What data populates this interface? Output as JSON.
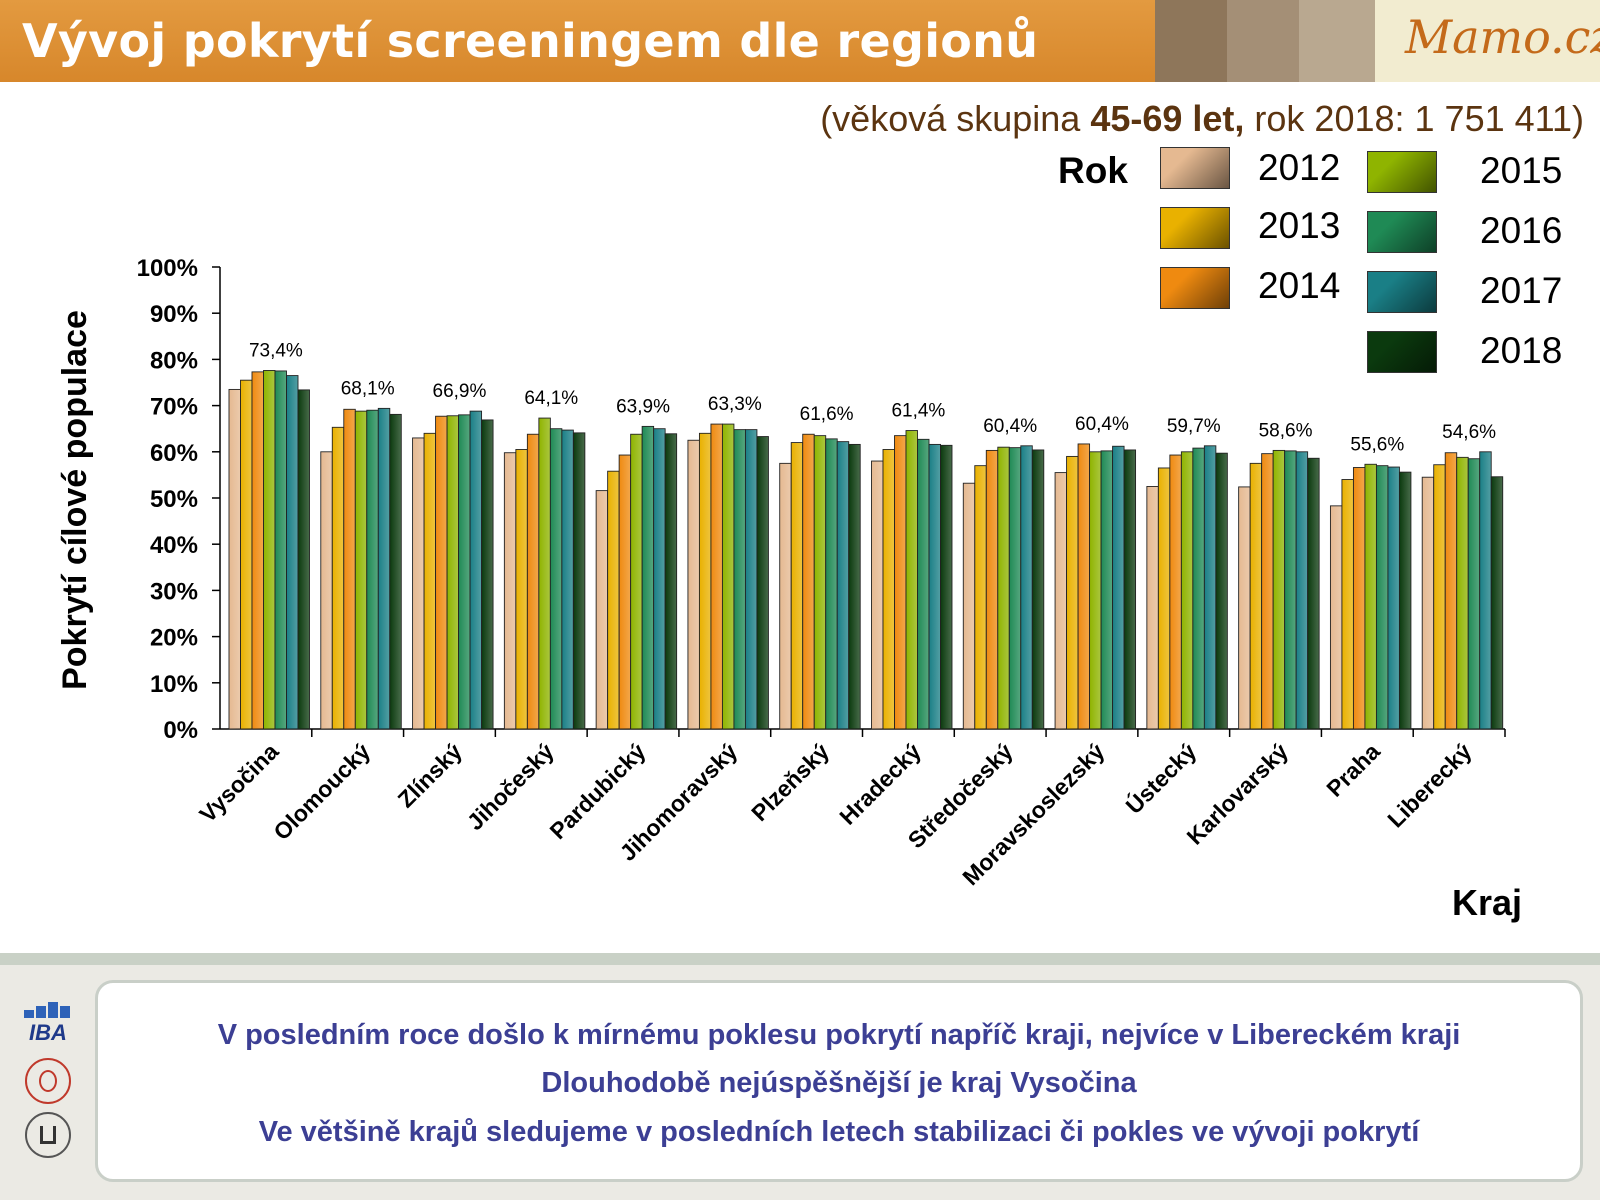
{
  "header": {
    "title": "Vývoj pokrytí screeningem dle regionů",
    "logo_text": "Mamo.cz",
    "tile_colors": [
      "#8e765a",
      "#a48f76",
      "#b9a890",
      "#cfc3ad"
    ]
  },
  "subtitle": {
    "pre": "(věková skupina ",
    "bold": "45-69 let,",
    "post": " rok 2018: 1 751 411)"
  },
  "legend": {
    "title": "Rok",
    "items": [
      {
        "label": "2012",
        "color": "#e5b991"
      },
      {
        "label": "2013",
        "color": "#e9b100"
      },
      {
        "label": "2014",
        "color": "#ef8a10"
      },
      {
        "label": "2015",
        "color": "#8fb400"
      },
      {
        "label": "2016",
        "color": "#1f8a55"
      },
      {
        "label": "2017",
        "color": "#1a7f86"
      },
      {
        "label": "2018",
        "color": "#0b3a0e"
      }
    ]
  },
  "chart_data": {
    "type": "bar",
    "ylabel": "Pokrytí cílové populace",
    "xlabel": "Kraj",
    "ylim": [
      0,
      100
    ],
    "yticks": [
      "0%",
      "10%",
      "20%",
      "30%",
      "40%",
      "50%",
      "60%",
      "70%",
      "80%",
      "90%",
      "100%"
    ],
    "categories": [
      "Vysočina",
      "Olomoucký",
      "Zlínský",
      "Jihočeský",
      "Pardubický",
      "Jihomoravský",
      "Plzeňský",
      "Hradecký",
      "Středočeský",
      "Moravskoslezský",
      "Ústecký",
      "Karlovarský",
      "Praha",
      "Liberecký"
    ],
    "series": [
      {
        "name": "2012",
        "values": [
          73.5,
          60.0,
          63.0,
          59.8,
          51.6,
          62.5,
          57.5,
          58.0,
          53.2,
          55.5,
          52.5,
          52.4,
          48.3,
          54.5
        ]
      },
      {
        "name": "2013",
        "values": [
          75.5,
          65.3,
          64.0,
          60.5,
          55.8,
          64.0,
          62.0,
          60.5,
          57.0,
          59.0,
          56.5,
          57.5,
          54.0,
          57.2
        ]
      },
      {
        "name": "2014",
        "values": [
          77.3,
          69.2,
          67.7,
          63.8,
          59.3,
          66.0,
          63.8,
          63.5,
          60.3,
          61.7,
          59.3,
          59.6,
          56.6,
          59.8
        ]
      },
      {
        "name": "2015",
        "values": [
          77.6,
          68.8,
          67.8,
          67.3,
          63.8,
          66.0,
          63.5,
          64.6,
          61.0,
          60.0,
          60.0,
          60.3,
          57.3,
          58.8
        ]
      },
      {
        "name": "2016",
        "values": [
          77.5,
          69.0,
          68.0,
          65.0,
          65.5,
          64.8,
          62.8,
          62.7,
          60.9,
          60.2,
          60.8,
          60.2,
          57.0,
          58.5
        ]
      },
      {
        "name": "2017",
        "values": [
          76.5,
          69.4,
          68.8,
          64.7,
          65.0,
          64.8,
          62.2,
          61.6,
          61.3,
          61.2,
          61.3,
          60.0,
          56.7,
          60.0
        ]
      },
      {
        "name": "2018",
        "values": [
          73.4,
          68.1,
          66.9,
          64.1,
          63.9,
          63.3,
          61.6,
          61.4,
          60.4,
          60.4,
          59.7,
          58.6,
          55.6,
          54.6
        ]
      }
    ],
    "data_labels": [
      "73,4%",
      "68,1%",
      "66,9%",
      "64,1%",
      "63,9%",
      "63,3%",
      "61,6%",
      "61,4%",
      "60,4%",
      "60,4%",
      "59,7%",
      "58,6%",
      "55,6%",
      "54,6%"
    ]
  },
  "footer": {
    "lines": [
      "V posledním roce došlo k mírnému poklesu pokrytí napříč kraji, nejvíce v Libereckém kraji",
      "Dlouhodobě nejúspěšnější je kraj Vysočina",
      "Ve většině krajů sledujeme v posledních letech stabilizaci či pokles ve vývoji pokrytí"
    ],
    "logos": {
      "iba": "IBA"
    }
  }
}
